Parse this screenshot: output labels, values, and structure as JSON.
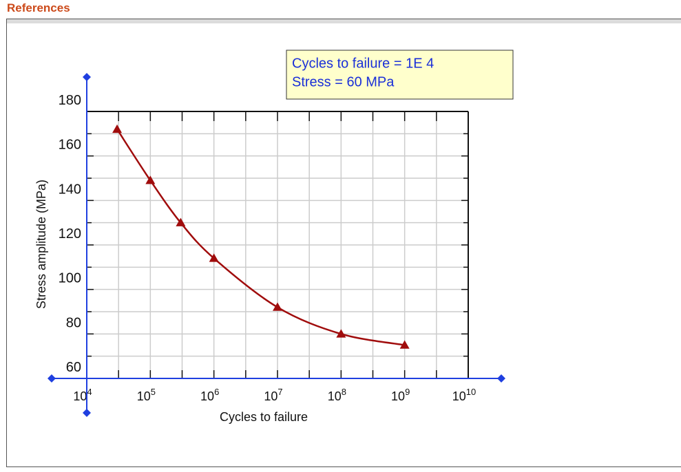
{
  "header": {
    "references_label": "References"
  },
  "readout": {
    "cycles_text": "Cycles to failure = 1E 4",
    "stress_text": "Stress = 60 MPa"
  },
  "colors": {
    "curve": "#a00c0c",
    "axis_handle": "#1f3fe0",
    "grid": "#cccccc",
    "readout_bg": "#ffffcc",
    "references": "#cc4a1a"
  },
  "chart_data": {
    "type": "line",
    "title": "",
    "xlabel": "Cycles to failure",
    "ylabel": "Stress amplitude (MPa)",
    "x_scale": "log",
    "xlim": [
      10000,
      10000000000
    ],
    "ylim": [
      60,
      180
    ],
    "grid": true,
    "legend": "none",
    "y_ticks": [
      60,
      80,
      100,
      120,
      140,
      160,
      180
    ],
    "y_tick_labels": [
      "60",
      "80",
      "100",
      "120",
      "140",
      "160",
      "180"
    ],
    "x_tick_labels": [
      {
        "base": "10",
        "exp": "4"
      },
      {
        "base": "10",
        "exp": "5"
      },
      {
        "base": "10",
        "exp": "6"
      },
      {
        "base": "10",
        "exp": "7"
      },
      {
        "base": "10",
        "exp": "8"
      },
      {
        "base": "10",
        "exp": "9"
      },
      {
        "base": "10",
        "exp": "10"
      }
    ],
    "series": [
      {
        "marker": "triangle",
        "x": [
          30000,
          100000,
          300000,
          1000000,
          10000000,
          100000000,
          1000000000
        ],
        "y": [
          172,
          149,
          130,
          114,
          92,
          80,
          75
        ]
      }
    ]
  }
}
